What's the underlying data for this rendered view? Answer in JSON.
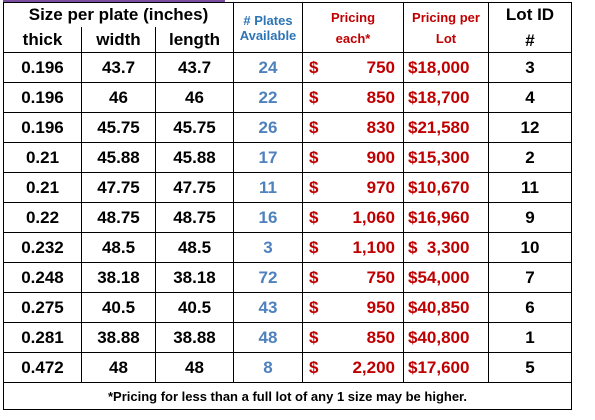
{
  "header": {
    "size_group": "Size per plate (inches)",
    "thick": "thick",
    "width": "width",
    "length": "length",
    "plates_line1": "# Plates",
    "plates_line2": "Available",
    "pricing_each_line1": "Pricing",
    "pricing_each_line2": "each*",
    "pricing_lot_line1": "Pricing per",
    "pricing_lot_line2": "Lot",
    "lot_id_line1": "Lot ID",
    "lot_id_line2": "#"
  },
  "rows": [
    {
      "thick": "0.196",
      "width": "43.7",
      "length": "43.7",
      "plates": "24",
      "dollar": "$",
      "each": "750",
      "lot_price": "$18,000",
      "lot_id": "3"
    },
    {
      "thick": "0.196",
      "width": "46",
      "length": "46",
      "plates": "22",
      "dollar": "$",
      "each": "850",
      "lot_price": "$18,700",
      "lot_id": "4"
    },
    {
      "thick": "0.196",
      "width": "45.75",
      "length": "45.75",
      "plates": "26",
      "dollar": "$",
      "each": "830",
      "lot_price": "$21,580",
      "lot_id": "12"
    },
    {
      "thick": "0.21",
      "width": "45.88",
      "length": "45.88",
      "plates": "17",
      "dollar": "$",
      "each": "900",
      "lot_price": "$15,300",
      "lot_id": "2"
    },
    {
      "thick": "0.21",
      "width": "47.75",
      "length": "47.75",
      "plates": "11",
      "dollar": "$",
      "each": "970",
      "lot_price": "$10,670",
      "lot_id": "11"
    },
    {
      "thick": "0.22",
      "width": "48.75",
      "length": "48.75",
      "plates": "16",
      "dollar": "$",
      "each": "1,060",
      "lot_price": "$16,960",
      "lot_id": "9"
    },
    {
      "thick": "0.232",
      "width": "48.5",
      "length": "48.5",
      "plates": "3",
      "dollar": "$",
      "each": "1,100",
      "lot_price": "$  3,300",
      "lot_id": "10"
    },
    {
      "thick": "0.248",
      "width": "38.18",
      "length": "38.18",
      "plates": "72",
      "dollar": "$",
      "each": "750",
      "lot_price": "$54,000",
      "lot_id": "7"
    },
    {
      "thick": "0.275",
      "width": "40.5",
      "length": "40.5",
      "plates": "43",
      "dollar": "$",
      "each": "950",
      "lot_price": "$40,850",
      "lot_id": "6"
    },
    {
      "thick": "0.281",
      "width": "38.88",
      "length": "38.88",
      "plates": "48",
      "dollar": "$",
      "each": "850",
      "lot_price": "$40,800",
      "lot_id": "1"
    },
    {
      "thick": "0.472",
      "width": "48",
      "length": "48",
      "plates": "8",
      "dollar": "$",
      "each": "2,200",
      "lot_price": "$17,600",
      "lot_id": "5"
    }
  ],
  "footnote": "*Pricing for less than a full lot of any 1 size may be higher.",
  "colors": {
    "black": "#000000",
    "blue": "#4f81bd",
    "red": "#c00000",
    "accent_rule": "#7b4ea0"
  }
}
